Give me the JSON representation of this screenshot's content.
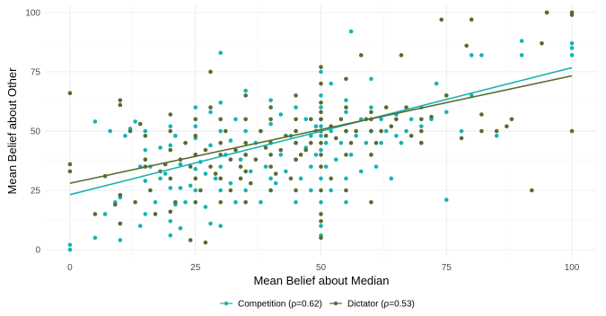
{
  "chart_data": {
    "type": "scatter",
    "xlabel": "Mean Belief about Median",
    "ylabel": "Mean Belief about Other",
    "xlim": [
      -5,
      105
    ],
    "ylim": [
      -3,
      103
    ],
    "x_ticks": [
      0,
      25,
      50,
      75,
      100
    ],
    "y_ticks": [
      0,
      25,
      50,
      75,
      100
    ],
    "grid": true,
    "legend_position": "bottom",
    "series": [
      {
        "name": "Competition (ρ=0.62)",
        "color": "#17b3b3",
        "fit": {
          "intercept": 23.2,
          "slope": 0.535
        },
        "points": [
          [
            0,
            0
          ],
          [
            0,
            2
          ],
          [
            5,
            5
          ],
          [
            5,
            54
          ],
          [
            7,
            15
          ],
          [
            8,
            50
          ],
          [
            9,
            20
          ],
          [
            10,
            4
          ],
          [
            10,
            11
          ],
          [
            10,
            22
          ],
          [
            10,
            23
          ],
          [
            11,
            48
          ],
          [
            12,
            51
          ],
          [
            13,
            54
          ],
          [
            14,
            10
          ],
          [
            14,
            35
          ],
          [
            15,
            15
          ],
          [
            15,
            29
          ],
          [
            15,
            42
          ],
          [
            15,
            50
          ],
          [
            16,
            35
          ],
          [
            17,
            20
          ],
          [
            18,
            30
          ],
          [
            18,
            43
          ],
          [
            19,
            32
          ],
          [
            20,
            6
          ],
          [
            20,
            12
          ],
          [
            20,
            26
          ],
          [
            20,
            44
          ],
          [
            20,
            52
          ],
          [
            21,
            19
          ],
          [
            21,
            48
          ],
          [
            22,
            9
          ],
          [
            22,
            26
          ],
          [
            22,
            36
          ],
          [
            23,
            20
          ],
          [
            24,
            27
          ],
          [
            25,
            25
          ],
          [
            25,
            34
          ],
          [
            25,
            40
          ],
          [
            25,
            47
          ],
          [
            25,
            52
          ],
          [
            25,
            60
          ],
          [
            26,
            37
          ],
          [
            27,
            18
          ],
          [
            27,
            32
          ],
          [
            28,
            11
          ],
          [
            28,
            44
          ],
          [
            28,
            58
          ],
          [
            29,
            30
          ],
          [
            30,
            10
          ],
          [
            30,
            25
          ],
          [
            30,
            35
          ],
          [
            30,
            50
          ],
          [
            30,
            62
          ],
          [
            30,
            83
          ],
          [
            31,
            40
          ],
          [
            32,
            28
          ],
          [
            32,
            46
          ],
          [
            33,
            20
          ],
          [
            33,
            55
          ],
          [
            34,
            38
          ],
          [
            35,
            25
          ],
          [
            35,
            40
          ],
          [
            35,
            50
          ],
          [
            35,
            67
          ],
          [
            36,
            33
          ],
          [
            37,
            45
          ],
          [
            38,
            20
          ],
          [
            38,
            50
          ],
          [
            39,
            35
          ],
          [
            40,
            25
          ],
          [
            40,
            30
          ],
          [
            40,
            45
          ],
          [
            40,
            53
          ],
          [
            40,
            63
          ],
          [
            41,
            28
          ],
          [
            42,
            40
          ],
          [
            42,
            57
          ],
          [
            43,
            33
          ],
          [
            44,
            48
          ],
          [
            45,
            20
          ],
          [
            45,
            38
          ],
          [
            45,
            45
          ],
          [
            45,
            50
          ],
          [
            45,
            60
          ],
          [
            46,
            30
          ],
          [
            47,
            43
          ],
          [
            47,
            55
          ],
          [
            48,
            25
          ],
          [
            48,
            35
          ],
          [
            48,
            48
          ],
          [
            49,
            40
          ],
          [
            49,
            52
          ],
          [
            50,
            10
          ],
          [
            50,
            20
          ],
          [
            50,
            30
          ],
          [
            50,
            42
          ],
          [
            50,
            48
          ],
          [
            50,
            52
          ],
          [
            50,
            55
          ],
          [
            50,
            60
          ],
          [
            50,
            65
          ],
          [
            50,
            75
          ],
          [
            50,
            6
          ],
          [
            51,
            35
          ],
          [
            51,
            45
          ],
          [
            52,
            25
          ],
          [
            52,
            50
          ],
          [
            52,
            70
          ],
          [
            53,
            38
          ],
          [
            54,
            45
          ],
          [
            55,
            20
          ],
          [
            55,
            30
          ],
          [
            55,
            50
          ],
          [
            55,
            58
          ],
          [
            55,
            63
          ],
          [
            56,
            40
          ],
          [
            56,
            92
          ],
          [
            57,
            48
          ],
          [
            58,
            33
          ],
          [
            58,
            55
          ],
          [
            59,
            45
          ],
          [
            60,
            40
          ],
          [
            60,
            50
          ],
          [
            60,
            60
          ],
          [
            60,
            72
          ],
          [
            61,
            35
          ],
          [
            62,
            45
          ],
          [
            62,
            55
          ],
          [
            63,
            50
          ],
          [
            64,
            30
          ],
          [
            65,
            48
          ],
          [
            65,
            57
          ],
          [
            66,
            45
          ],
          [
            67,
            50
          ],
          [
            68,
            55
          ],
          [
            70,
            45
          ],
          [
            70,
            52
          ],
          [
            70,
            60
          ],
          [
            72,
            55
          ],
          [
            73,
            70
          ],
          [
            75,
            21
          ],
          [
            75,
            58
          ],
          [
            75,
            65
          ],
          [
            78,
            50
          ],
          [
            80,
            65
          ],
          [
            80,
            82
          ],
          [
            82,
            82
          ],
          [
            85,
            48
          ],
          [
            90,
            82
          ],
          [
            90,
            88
          ],
          [
            95,
            100
          ],
          [
            100,
            82
          ],
          [
            100,
            87
          ],
          [
            100,
            85
          ]
        ]
      },
      {
        "name": "Dictator (ρ=0.53)",
        "color": "#5a6b30",
        "fit": {
          "intercept": 28.0,
          "slope": 0.453
        },
        "points": [
          [
            0,
            33
          ],
          [
            0,
            36
          ],
          [
            0,
            66
          ],
          [
            5,
            15
          ],
          [
            7,
            31
          ],
          [
            9,
            19
          ],
          [
            10,
            11
          ],
          [
            10,
            23
          ],
          [
            10,
            61
          ],
          [
            10,
            63
          ],
          [
            12,
            50
          ],
          [
            13,
            20
          ],
          [
            14,
            53
          ],
          [
            15,
            35
          ],
          [
            15,
            38
          ],
          [
            15,
            48
          ],
          [
            16,
            25
          ],
          [
            17,
            15
          ],
          [
            18,
            33
          ],
          [
            19,
            36
          ],
          [
            20,
            16
          ],
          [
            20,
            30
          ],
          [
            20,
            42
          ],
          [
            20,
            50
          ],
          [
            20,
            57
          ],
          [
            21,
            20
          ],
          [
            22,
            38
          ],
          [
            23,
            45
          ],
          [
            24,
            4
          ],
          [
            24,
            35
          ],
          [
            25,
            20
          ],
          [
            25,
            30
          ],
          [
            25,
            40
          ],
          [
            25,
            48
          ],
          [
            25,
            55
          ],
          [
            26,
            25
          ],
          [
            27,
            3
          ],
          [
            27,
            42
          ],
          [
            28,
            35
          ],
          [
            28,
            60
          ],
          [
            28,
            75
          ],
          [
            29,
            32
          ],
          [
            30,
            20
          ],
          [
            30,
            30
          ],
          [
            30,
            40
          ],
          [
            30,
            45
          ],
          [
            30,
            55
          ],
          [
            31,
            50
          ],
          [
            32,
            25
          ],
          [
            32,
            38
          ],
          [
            33,
            42
          ],
          [
            34,
            30
          ],
          [
            34,
            35
          ],
          [
            35,
            20
          ],
          [
            35,
            33
          ],
          [
            35,
            40
          ],
          [
            35,
            45
          ],
          [
            35,
            55
          ],
          [
            35,
            65
          ],
          [
            36,
            28
          ],
          [
            37,
            38
          ],
          [
            38,
            50
          ],
          [
            39,
            43
          ],
          [
            40,
            25
          ],
          [
            40,
            35
          ],
          [
            40,
            40
          ],
          [
            40,
            45
          ],
          [
            40,
            55
          ],
          [
            40,
            60
          ],
          [
            41,
            32
          ],
          [
            42,
            42
          ],
          [
            43,
            48
          ],
          [
            44,
            30
          ],
          [
            45,
            25
          ],
          [
            45,
            38
          ],
          [
            45,
            45
          ],
          [
            45,
            50
          ],
          [
            45,
            55
          ],
          [
            45,
            65
          ],
          [
            46,
            40
          ],
          [
            47,
            42
          ],
          [
            48,
            45
          ],
          [
            48,
            55
          ],
          [
            49,
            50
          ],
          [
            50,
            5
          ],
          [
            50,
            12
          ],
          [
            50,
            15
          ],
          [
            50,
            25
          ],
          [
            50,
            35
          ],
          [
            50,
            40
          ],
          [
            50,
            45
          ],
          [
            50,
            50
          ],
          [
            50,
            55
          ],
          [
            50,
            58
          ],
          [
            50,
            62
          ],
          [
            50,
            70
          ],
          [
            50,
            77
          ],
          [
            51,
            48
          ],
          [
            52,
            52
          ],
          [
            52,
            30
          ],
          [
            53,
            47
          ],
          [
            54,
            55
          ],
          [
            55,
            25
          ],
          [
            55,
            40
          ],
          [
            55,
            50
          ],
          [
            55,
            60
          ],
          [
            55,
            72
          ],
          [
            56,
            45
          ],
          [
            57,
            50
          ],
          [
            58,
            82
          ],
          [
            59,
            55
          ],
          [
            60,
            20
          ],
          [
            60,
            40
          ],
          [
            60,
            50
          ],
          [
            60,
            55
          ],
          [
            60,
            58
          ],
          [
            61,
            45
          ],
          [
            62,
            50
          ],
          [
            63,
            60
          ],
          [
            64,
            52
          ],
          [
            65,
            55
          ],
          [
            66,
            82
          ],
          [
            67,
            60
          ],
          [
            68,
            48
          ],
          [
            70,
            45
          ],
          [
            70,
            50
          ],
          [
            70,
            55
          ],
          [
            72,
            56
          ],
          [
            74,
            97
          ],
          [
            75,
            65
          ],
          [
            78,
            47
          ],
          [
            79,
            86
          ],
          [
            80,
            97
          ],
          [
            82,
            57
          ],
          [
            82,
            50
          ],
          [
            85,
            50
          ],
          [
            87,
            52
          ],
          [
            88,
            55
          ],
          [
            92,
            25
          ],
          [
            94,
            87
          ],
          [
            95,
            100
          ],
          [
            100,
            50
          ],
          [
            100,
            100
          ],
          [
            100,
            99
          ]
        ]
      }
    ]
  }
}
